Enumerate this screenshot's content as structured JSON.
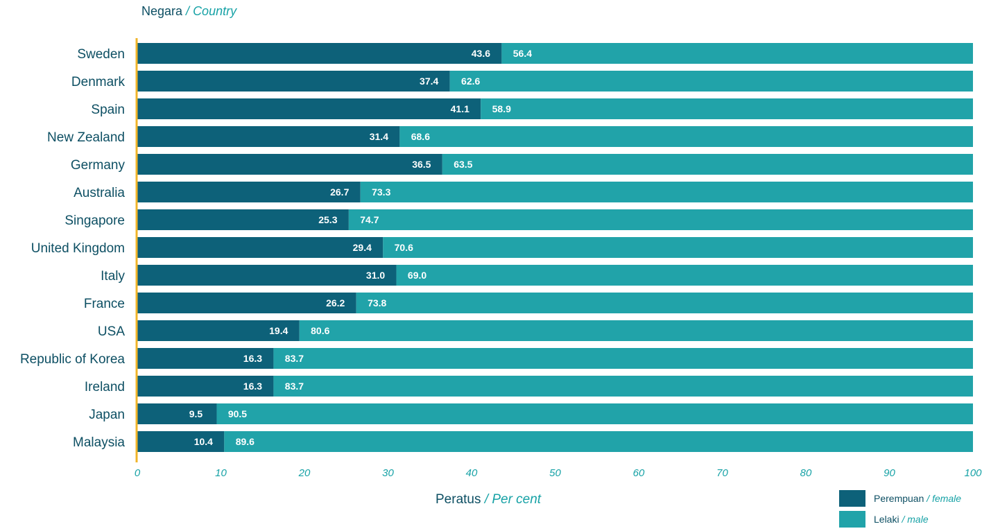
{
  "y_axis_title": {
    "main": "Negara",
    "sep": " / ",
    "en": "Country"
  },
  "x_axis_title": {
    "main": "Peratus",
    "sep": " / ",
    "en": "Per cent"
  },
  "legend": [
    {
      "main": "Perempuan",
      "sep": " / ",
      "en": "female",
      "color": "#0d6179"
    },
    {
      "main": "Lelaki",
      "sep": " / ",
      "en": "male",
      "color": "#21a3a9"
    }
  ],
  "chart_data": {
    "type": "bar",
    "orientation": "horizontal",
    "stacked": true,
    "categories": [
      "Sweden",
      "Denmark",
      "Spain",
      "New Zealand",
      "Germany",
      "Australia",
      "Singapore",
      "United Kingdom",
      "Italy",
      "France",
      "USA",
      "Republic of Korea",
      "Ireland",
      "Japan",
      "Malaysia"
    ],
    "series": [
      {
        "name": "Perempuan / female",
        "color": "#0d6179",
        "values": [
          43.6,
          37.4,
          41.1,
          31.4,
          36.5,
          26.7,
          25.3,
          29.4,
          31.0,
          26.2,
          19.4,
          16.3,
          16.3,
          9.5,
          10.4
        ]
      },
      {
        "name": "Lelaki / male",
        "color": "#21a3a9",
        "values": [
          56.4,
          62.6,
          58.9,
          68.6,
          63.5,
          73.3,
          74.7,
          70.6,
          69.0,
          73.8,
          80.6,
          83.7,
          83.7,
          90.5,
          89.6
        ]
      }
    ],
    "xlim": [
      0,
      100
    ],
    "x_ticks": [
      0,
      10,
      20,
      30,
      40,
      50,
      60,
      70,
      80,
      90,
      100
    ],
    "xlabel": "Peratus / Per cent",
    "ylabel": "Negara / Country",
    "grid": false,
    "legend_position": "bottom-right"
  }
}
